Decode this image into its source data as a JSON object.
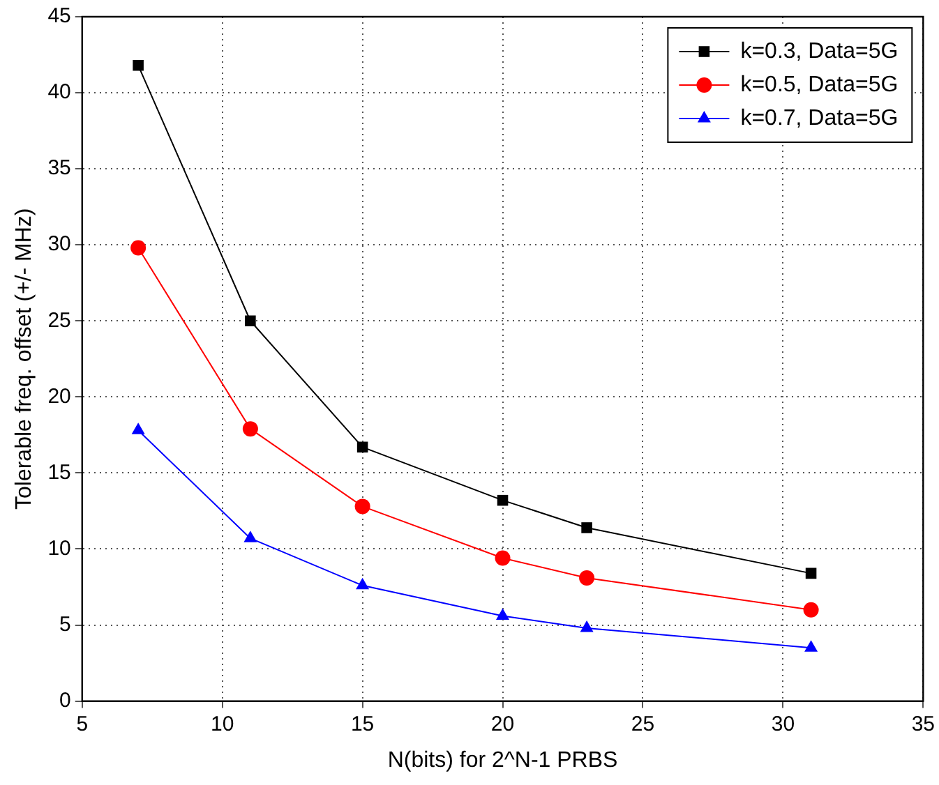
{
  "chart_data": {
    "type": "line",
    "xlabel": "N(bits) for 2^N-1 PRBS",
    "ylabel": "Tolerable freq. offset (+/- MHz)",
    "x": [
      7,
      11,
      15,
      20,
      23,
      31
    ],
    "series": [
      {
        "name": "k=0.3, Data=5G",
        "color": "#000000",
        "marker": "square",
        "values": [
          41.8,
          25.0,
          16.7,
          13.2,
          11.4,
          8.4
        ]
      },
      {
        "name": "k=0.5, Data=5G",
        "color": "#ff0000",
        "marker": "circle",
        "values": [
          29.8,
          17.9,
          12.8,
          9.4,
          8.1,
          6.0
        ]
      },
      {
        "name": "k=0.7, Data=5G",
        "color": "#0000ff",
        "marker": "triangle",
        "values": [
          17.8,
          10.7,
          7.6,
          5.6,
          4.8,
          3.5
        ]
      }
    ],
    "xlim": [
      5,
      35
    ],
    "xticks": [
      5,
      10,
      15,
      20,
      25,
      30,
      35
    ],
    "ylim": [
      0,
      45
    ],
    "yticks": [
      0,
      5,
      10,
      15,
      20,
      25,
      30,
      35,
      40,
      45
    ],
    "grid": true,
    "legend": "top right",
    "line_style": "solid"
  }
}
